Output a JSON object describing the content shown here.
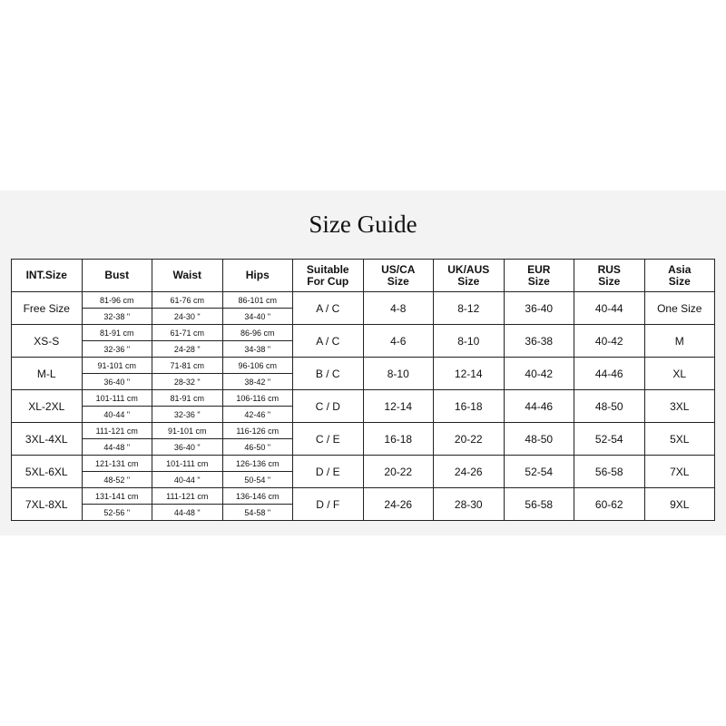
{
  "title": "Size Guide",
  "headers": [
    "INT.Size",
    "Bust",
    "Waist",
    "Hips",
    "Suitable\nFor Cup",
    "US/CA\nSize",
    "UK/AUS\nSize",
    "EUR\nSize",
    "RUS\nSize",
    "Asia\nSize"
  ],
  "rows": [
    {
      "size": "Free Size",
      "bust_cm": "81-96 cm",
      "bust_in": "32-38 \"",
      "waist_cm": "61-76 cm",
      "waist_in": "24-30 \"",
      "hips_cm": "86-101 cm",
      "hips_in": "34-40 \"",
      "cup": "A / C",
      "us": "4-8",
      "uk": "8-12",
      "eur": "36-40",
      "rus": "40-44",
      "asia": "One Size"
    },
    {
      "size": "XS-S",
      "bust_cm": "81-91 cm",
      "bust_in": "32-36 \"",
      "waist_cm": "61-71 cm",
      "waist_in": "24-28 \"",
      "hips_cm": "86-96 cm",
      "hips_in": "34-38 \"",
      "cup": "A / C",
      "us": "4-6",
      "uk": "8-10",
      "eur": "36-38",
      "rus": "40-42",
      "asia": "M"
    },
    {
      "size": "M-L",
      "bust_cm": "91-101 cm",
      "bust_in": "36-40 \"",
      "waist_cm": "71-81 cm",
      "waist_in": "28-32 \"",
      "hips_cm": "96-106 cm",
      "hips_in": "38-42 \"",
      "cup": "B / C",
      "us": "8-10",
      "uk": "12-14",
      "eur": "40-42",
      "rus": "44-46",
      "asia": "XL"
    },
    {
      "size": "XL-2XL",
      "bust_cm": "101-111 cm",
      "bust_in": "40-44 \"",
      "waist_cm": "81-91 cm",
      "waist_in": "32-36 \"",
      "hips_cm": "106-116 cm",
      "hips_in": "42-46 \"",
      "cup": "C / D",
      "us": "12-14",
      "uk": "16-18",
      "eur": "44-46",
      "rus": "48-50",
      "asia": "3XL"
    },
    {
      "size": "3XL-4XL",
      "bust_cm": "111-121 cm",
      "bust_in": "44-48 \"",
      "waist_cm": "91-101 cm",
      "waist_in": "36-40 \"",
      "hips_cm": "116-126 cm",
      "hips_in": "46-50 \"",
      "cup": "C / E",
      "us": "16-18",
      "uk": "20-22",
      "eur": "48-50",
      "rus": "52-54",
      "asia": "5XL"
    },
    {
      "size": "5XL-6XL",
      "bust_cm": "121-131 cm",
      "bust_in": "48-52 \"",
      "waist_cm": "101-111 cm",
      "waist_in": "40-44 \"",
      "hips_cm": "126-136 cm",
      "hips_in": "50-54 \"",
      "cup": "D / E",
      "us": "20-22",
      "uk": "24-26",
      "eur": "52-54",
      "rus": "56-58",
      "asia": "7XL"
    },
    {
      "size": "7XL-8XL",
      "bust_cm": "131-141 cm",
      "bust_in": "52-56 \"",
      "waist_cm": "111-121 cm",
      "waist_in": "44-48 \"",
      "hips_cm": "136-146 cm",
      "hips_in": "54-58 \"",
      "cup": "D / F",
      "us": "24-26",
      "uk": "28-30",
      "eur": "56-58",
      "rus": "60-62",
      "asia": "9XL"
    }
  ]
}
